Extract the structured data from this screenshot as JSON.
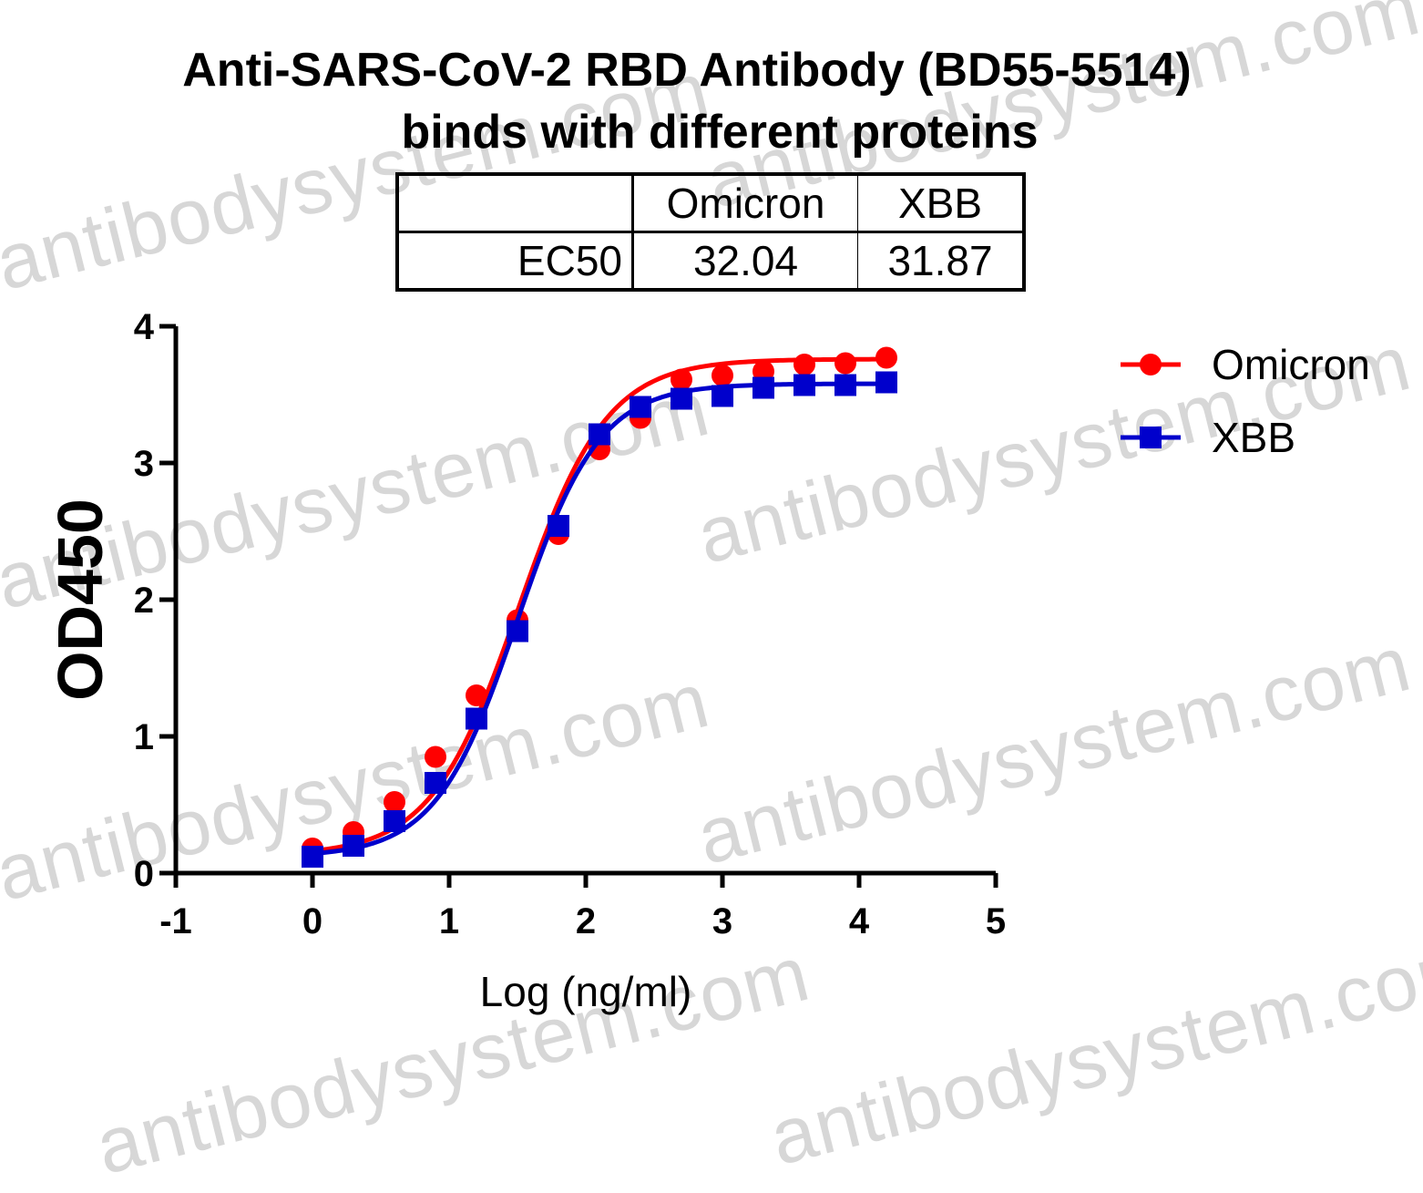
{
  "watermark_text": "antibodysystem.com",
  "title_lines": [
    "Anti-SARS-CoV-2 RBD Antibody (BD55-5514)",
    "binds with different proteins"
  ],
  "ec50_table": {
    "headers": [
      "",
      "Omicron",
      "XBB"
    ],
    "row_label": "EC50",
    "values": [
      "32.04",
      "31.87"
    ]
  },
  "colors": {
    "omicron": "#ff0000",
    "xbb": "#0000cc",
    "axis": "#000000",
    "watermark": "#d7d7d7"
  },
  "chart_data": {
    "type": "line",
    "title": "Anti-SARS-CoV-2 RBD Antibody (BD55-5514) binds with different proteins",
    "xlabel": "Log (ng/ml)",
    "ylabel": "OD450",
    "xlim": [
      -1,
      5
    ],
    "ylim": [
      0,
      4
    ],
    "xticks": [
      "-1",
      "0",
      "1",
      "2",
      "3",
      "4",
      "5"
    ],
    "yticks": [
      "0",
      "1",
      "2",
      "3",
      "4"
    ],
    "legend_position": "top-right",
    "grid": false,
    "series": [
      {
        "name": "Omicron",
        "marker": "circle",
        "color": "#ff0000",
        "x": [
          0,
          0.3,
          0.6,
          0.9,
          1.2,
          1.5,
          1.8,
          2.1,
          2.4,
          2.7,
          3.0,
          3.3,
          3.6,
          3.9,
          4.2
        ],
        "y": [
          0.18,
          0.3,
          0.52,
          0.85,
          1.3,
          1.85,
          2.48,
          3.1,
          3.33,
          3.61,
          3.64,
          3.67,
          3.72,
          3.73,
          3.77
        ],
        "fit": {
          "bottom": 0.13,
          "top": 3.76,
          "logEC50": 1.51,
          "hill": 1.35
        }
      },
      {
        "name": "XBB",
        "marker": "square",
        "color": "#0000cc",
        "x": [
          0,
          0.3,
          0.6,
          0.9,
          1.2,
          1.5,
          1.8,
          2.1,
          2.4,
          2.7,
          3.0,
          3.3,
          3.6,
          3.9,
          4.2
        ],
        "y": [
          0.12,
          0.2,
          0.38,
          0.66,
          1.13,
          1.77,
          2.54,
          3.21,
          3.41,
          3.47,
          3.49,
          3.55,
          3.57,
          3.57,
          3.59
        ],
        "fit": {
          "bottom": 0.12,
          "top": 3.58,
          "logEC50": 1.5,
          "hill": 1.45
        }
      }
    ]
  }
}
